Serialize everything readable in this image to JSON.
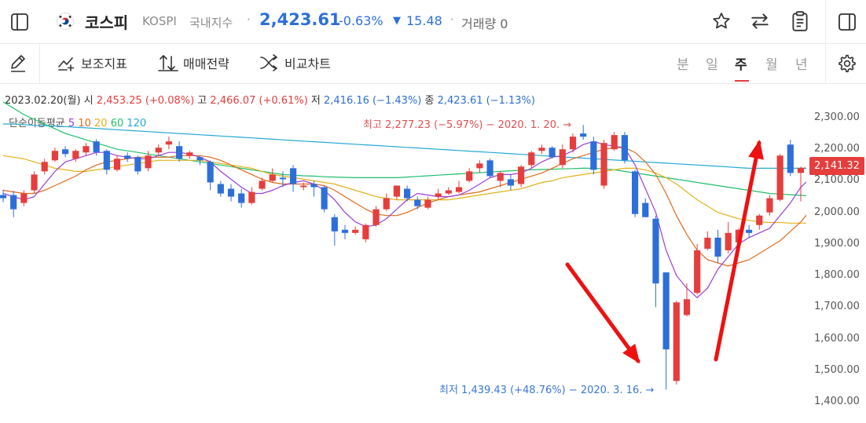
{
  "header": {
    "title": "코스피",
    "symbol": "KOSPI",
    "category": "국내지수",
    "separator": "·",
    "price": "2,423.61",
    "change_pct": "-0.63%",
    "change_arrow": "▼",
    "change_abs": "15.48",
    "volume_label": "거래량 0"
  },
  "toolbar": {
    "tools": [
      {
        "label": "보조지표",
        "icon": "indicator-icon"
      },
      {
        "label": "매매전략",
        "icon": "trade-strategy-icon"
      },
      {
        "label": "비교차트",
        "icon": "compare-icon"
      }
    ],
    "periods": [
      "분",
      "일",
      "주",
      "월",
      "년"
    ],
    "active_period": "주"
  },
  "ohlc": {
    "date": "2023.02.20(월)",
    "open_label": "시",
    "open": "2,453.25 (+0.08%)",
    "high_label": "고",
    "high": "2,466.07 (+0.61%)",
    "low_label": "저",
    "low": "2,416.16 (−1.43%)",
    "close_label": "종",
    "close": "2,423.61 (−1.13%)"
  },
  "ma_legend": {
    "label": "단순이동평균",
    "periods": [
      "5",
      "10",
      "20",
      "60",
      "120"
    ],
    "colors": [
      "#9b3fd6",
      "#e06a1b",
      "#e2b21a",
      "#1fbf6a",
      "#25a9d6"
    ]
  },
  "annotations": {
    "high": "최고 2,277.23 (−5.97%) − 2020. 1. 20. →",
    "low": "최저 1,439.43 (+48.76%) − 2020. 3. 16. →"
  },
  "last_price_tag": "2,141.32",
  "colors": {
    "up": "#e63d3d",
    "down": "#2d6fd9",
    "accent": "#e63d3d"
  },
  "chart_data": {
    "type": "candlestick",
    "yaxis_ticks": [
      "2,300.00",
      "2,200.00",
      "2,100.00",
      "2,000.00",
      "1,900.00",
      "1,800.00",
      "1,700.00",
      "1,600.00",
      "1,500.00",
      "1,400.00"
    ],
    "ylim": [
      1380,
      2330
    ],
    "candles": [
      {
        "o": 2055,
        "h": 2072,
        "l": 2032,
        "c": 2045
      },
      {
        "o": 2055,
        "h": 2068,
        "l": 1985,
        "c": 2010
      },
      {
        "o": 2030,
        "h": 2070,
        "l": 2020,
        "c": 2060
      },
      {
        "o": 2070,
        "h": 2130,
        "l": 2060,
        "c": 2120
      },
      {
        "o": 2130,
        "h": 2170,
        "l": 2120,
        "c": 2160
      },
      {
        "o": 2165,
        "h": 2205,
        "l": 2160,
        "c": 2195
      },
      {
        "o": 2200,
        "h": 2210,
        "l": 2175,
        "c": 2185
      },
      {
        "o": 2170,
        "h": 2200,
        "l": 2160,
        "c": 2195
      },
      {
        "o": 2190,
        "h": 2220,
        "l": 2180,
        "c": 2210
      },
      {
        "o": 2225,
        "h": 2232,
        "l": 2180,
        "c": 2190
      },
      {
        "o": 2195,
        "h": 2200,
        "l": 2120,
        "c": 2135
      },
      {
        "o": 2135,
        "h": 2180,
        "l": 2130,
        "c": 2170
      },
      {
        "o": 2180,
        "h": 2190,
        "l": 2160,
        "c": 2170
      },
      {
        "o": 2175,
        "h": 2180,
        "l": 2120,
        "c": 2130
      },
      {
        "o": 2140,
        "h": 2195,
        "l": 2130,
        "c": 2180
      },
      {
        "o": 2190,
        "h": 2215,
        "l": 2180,
        "c": 2205
      },
      {
        "o": 2215,
        "h": 2240,
        "l": 2200,
        "c": 2225
      },
      {
        "o": 2210,
        "h": 2225,
        "l": 2160,
        "c": 2170
      },
      {
        "o": 2180,
        "h": 2195,
        "l": 2170,
        "c": 2190
      },
      {
        "o": 2175,
        "h": 2180,
        "l": 2150,
        "c": 2165
      },
      {
        "o": 2160,
        "h": 2165,
        "l": 2070,
        "c": 2095
      },
      {
        "o": 2090,
        "h": 2100,
        "l": 2050,
        "c": 2060
      },
      {
        "o": 2075,
        "h": 2090,
        "l": 2035,
        "c": 2050
      },
      {
        "o": 2060,
        "h": 2075,
        "l": 2015,
        "c": 2030
      },
      {
        "o": 2030,
        "h": 2080,
        "l": 2025,
        "c": 2065
      },
      {
        "o": 2075,
        "h": 2110,
        "l": 2070,
        "c": 2100
      },
      {
        "o": 2100,
        "h": 2140,
        "l": 2095,
        "c": 2120
      },
      {
        "o": 2110,
        "h": 2130,
        "l": 2080,
        "c": 2105
      },
      {
        "o": 2140,
        "h": 2150,
        "l": 2065,
        "c": 2090
      },
      {
        "o": 2080,
        "h": 2095,
        "l": 2070,
        "c": 2085
      },
      {
        "o": 2090,
        "h": 2100,
        "l": 2050,
        "c": 2080
      },
      {
        "o": 2080,
        "h": 2085,
        "l": 2000,
        "c": 2010
      },
      {
        "o": 1985,
        "h": 1995,
        "l": 1895,
        "c": 1940
      },
      {
        "o": 1945,
        "h": 1960,
        "l": 1915,
        "c": 1935
      },
      {
        "o": 1935,
        "h": 1955,
        "l": 1930,
        "c": 1945
      },
      {
        "o": 1915,
        "h": 1965,
        "l": 1905,
        "c": 1960
      },
      {
        "o": 1960,
        "h": 2020,
        "l": 1955,
        "c": 2010
      },
      {
        "o": 2010,
        "h": 2060,
        "l": 2005,
        "c": 2045
      },
      {
        "o": 2050,
        "h": 2080,
        "l": 2040,
        "c": 2085
      },
      {
        "o": 2075,
        "h": 2085,
        "l": 2035,
        "c": 2045
      },
      {
        "o": 2040,
        "h": 2050,
        "l": 2010,
        "c": 2020
      },
      {
        "o": 2015,
        "h": 2050,
        "l": 2010,
        "c": 2040
      },
      {
        "o": 2050,
        "h": 2075,
        "l": 2040,
        "c": 2060
      },
      {
        "o": 2060,
        "h": 2080,
        "l": 2055,
        "c": 2070
      },
      {
        "o": 2065,
        "h": 2100,
        "l": 2060,
        "c": 2080
      },
      {
        "o": 2100,
        "h": 2140,
        "l": 2095,
        "c": 2130
      },
      {
        "o": 2140,
        "h": 2165,
        "l": 2125,
        "c": 2155
      },
      {
        "o": 2165,
        "h": 2170,
        "l": 2110,
        "c": 2115
      },
      {
        "o": 2100,
        "h": 2130,
        "l": 2080,
        "c": 2125
      },
      {
        "o": 2105,
        "h": 2120,
        "l": 2070,
        "c": 2085
      },
      {
        "o": 2090,
        "h": 2150,
        "l": 2080,
        "c": 2145
      },
      {
        "o": 2150,
        "h": 2195,
        "l": 2140,
        "c": 2190
      },
      {
        "o": 2195,
        "h": 2215,
        "l": 2185,
        "c": 2205
      },
      {
        "o": 2205,
        "h": 2210,
        "l": 2170,
        "c": 2175
      },
      {
        "o": 2150,
        "h": 2215,
        "l": 2140,
        "c": 2200
      },
      {
        "o": 2200,
        "h": 2250,
        "l": 2190,
        "c": 2240
      },
      {
        "o": 2250,
        "h": 2277,
        "l": 2230,
        "c": 2240
      },
      {
        "o": 2225,
        "h": 2240,
        "l": 2120,
        "c": 2135
      },
      {
        "o": 2085,
        "h": 2230,
        "l": 2075,
        "c": 2220
      },
      {
        "o": 2200,
        "h": 2255,
        "l": 2195,
        "c": 2245
      },
      {
        "o": 2245,
        "h": 2255,
        "l": 2155,
        "c": 2165
      },
      {
        "o": 2130,
        "h": 2135,
        "l": 1985,
        "c": 1995
      },
      {
        "o": 2030,
        "h": 2045,
        "l": 1985,
        "c": 1985
      },
      {
        "o": 1980,
        "h": 1990,
        "l": 1700,
        "c": 1775
      },
      {
        "o": 1810,
        "h": 1810,
        "l": 1439,
        "c": 1566
      },
      {
        "o": 1466,
        "h": 1720,
        "l": 1455,
        "c": 1715
      },
      {
        "o": 1675,
        "h": 1775,
        "l": 1670,
        "c": 1725
      },
      {
        "o": 1745,
        "h": 1900,
        "l": 1740,
        "c": 1880
      },
      {
        "o": 1885,
        "h": 1940,
        "l": 1880,
        "c": 1920
      },
      {
        "o": 1920,
        "h": 1945,
        "l": 1840,
        "c": 1860
      },
      {
        "o": 1880,
        "h": 1970,
        "l": 1870,
        "c": 1935
      },
      {
        "o": 1905,
        "h": 1950,
        "l": 1880,
        "c": 1945
      },
      {
        "o": 1945,
        "h": 1960,
        "l": 1920,
        "c": 1935
      },
      {
        "o": 1960,
        "h": 1995,
        "l": 1945,
        "c": 1990
      },
      {
        "o": 2000,
        "h": 2055,
        "l": 1990,
        "c": 2045
      },
      {
        "o": 2040,
        "h": 2185,
        "l": 2035,
        "c": 2180
      },
      {
        "o": 2215,
        "h": 2230,
        "l": 2115,
        "c": 2125
      },
      {
        "o": 2125,
        "h": 2145,
        "l": 2035,
        "c": 2141
      }
    ],
    "ma_lines": {
      "ma5": [
        2060,
        2050,
        2040,
        2050,
        2090,
        2130,
        2160,
        2170,
        2180,
        2190,
        2190,
        2180,
        2175,
        2170,
        2170,
        2180,
        2190,
        2190,
        2185,
        2175,
        2160,
        2130,
        2105,
        2080,
        2060,
        2060,
        2070,
        2085,
        2095,
        2100,
        2090,
        2070,
        2040,
        2000,
        1970,
        1955,
        1960,
        1980,
        2010,
        2040,
        2060,
        2055,
        2050,
        2050,
        2055,
        2070,
        2090,
        2110,
        2120,
        2120,
        2125,
        2140,
        2160,
        2175,
        2180,
        2195,
        2215,
        2225,
        2215,
        2210,
        2205,
        2150,
        2075,
        2000,
        1880,
        1800,
        1760,
        1730,
        1760,
        1820,
        1860,
        1900,
        1920,
        1935,
        1950,
        1990,
        2030,
        2080,
        2110
      ],
      "ma10": [
        2070,
        2065,
        2060,
        2060,
        2070,
        2085,
        2100,
        2115,
        2135,
        2150,
        2160,
        2165,
        2170,
        2175,
        2175,
        2175,
        2175,
        2180,
        2180,
        2180,
        2175,
        2165,
        2150,
        2135,
        2120,
        2105,
        2095,
        2090,
        2090,
        2090,
        2090,
        2085,
        2070,
        2050,
        2030,
        2010,
        1995,
        1990,
        1990,
        2000,
        2015,
        2030,
        2040,
        2050,
        2055,
        2060,
        2065,
        2075,
        2085,
        2095,
        2105,
        2115,
        2125,
        2140,
        2155,
        2170,
        2180,
        2190,
        2200,
        2205,
        2205,
        2190,
        2160,
        2120,
        2060,
        1990,
        1930,
        1880,
        1850,
        1840,
        1830,
        1840,
        1850,
        1870,
        1890,
        1910,
        1940,
        1970,
        2010
      ],
      "ma20": [
        2180,
        2175,
        2170,
        2160,
        2150,
        2140,
        2135,
        2130,
        2130,
        2135,
        2140,
        2145,
        2150,
        2155,
        2160,
        2165,
        2165,
        2165,
        2165,
        2165,
        2160,
        2155,
        2150,
        2145,
        2140,
        2130,
        2120,
        2115,
        2110,
        2105,
        2100,
        2095,
        2090,
        2080,
        2070,
        2060,
        2050,
        2045,
        2040,
        2040,
        2040,
        2040,
        2040,
        2040,
        2045,
        2050,
        2055,
        2060,
        2065,
        2070,
        2075,
        2085,
        2095,
        2100,
        2110,
        2115,
        2120,
        2125,
        2130,
        2135,
        2140,
        2140,
        2135,
        2125,
        2110,
        2090,
        2065,
        2040,
        2020,
        2000,
        1990,
        1980,
        1975,
        1970,
        1968,
        1968,
        1966,
        1966,
        1966
      ],
      "ma60": [
        2350,
        2330,
        2310,
        2295,
        2280,
        2265,
        2250,
        2240,
        2230,
        2220,
        2210,
        2200,
        2195,
        2190,
        2185,
        2180,
        2175,
        2170,
        2165,
        2160,
        2155,
        2150,
        2145,
        2140,
        2135,
        2130,
        2125,
        2120,
        2118,
        2116,
        2115,
        2113,
        2112,
        2111,
        2110,
        2110,
        2110,
        2110,
        2110,
        2112,
        2114,
        2116,
        2118,
        2120,
        2122,
        2124,
        2126,
        2128,
        2130,
        2132,
        2134,
        2135,
        2136,
        2137,
        2138,
        2139,
        2140,
        2140,
        2138,
        2135,
        2130,
        2125,
        2120,
        2115,
        2110,
        2105,
        2100,
        2095,
        2090,
        2085,
        2080,
        2075,
        2070,
        2065,
        2060,
        2058,
        2056,
        2054,
        2052
      ],
      "ma120": [
        2280,
        2280,
        2278,
        2276,
        2275,
        2274,
        2272,
        2270,
        2268,
        2266,
        2264,
        2262,
        2260,
        2258,
        2256,
        2254,
        2252,
        2250,
        2248,
        2246,
        2244,
        2242,
        2240,
        2238,
        2236,
        2234,
        2232,
        2230,
        2228,
        2226,
        2224,
        2222,
        2220,
        2218,
        2216,
        2214,
        2212,
        2210,
        2208,
        2206,
        2204,
        2202,
        2200,
        2198,
        2196,
        2194,
        2192,
        2190,
        2188,
        2186,
        2184,
        2182,
        2180,
        2178,
        2176,
        2174,
        2172,
        2170,
        2168,
        2166,
        2164,
        2162,
        2160,
        2158,
        2156,
        2154,
        2152,
        2150,
        2148,
        2146,
        2144,
        2142,
        2140,
        2140,
        2140,
        2140,
        2140,
        2140,
        2140
      ]
    }
  }
}
